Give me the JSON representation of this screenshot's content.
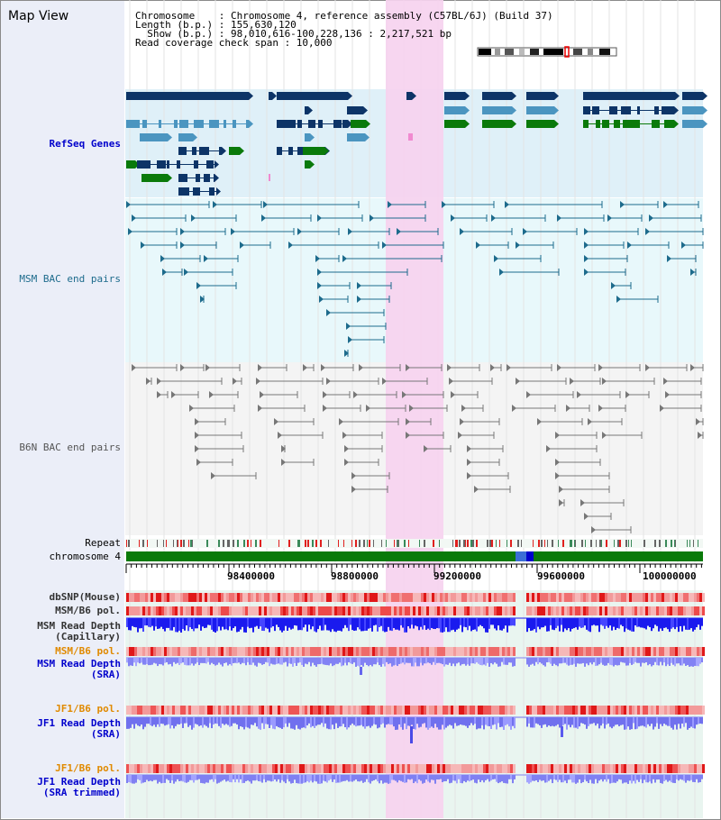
{
  "window": {
    "title": "Map View"
  },
  "info": {
    "line1": "Chromosome    : Chromosome 4, reference assembly (C57BL/6J) (Build 37)",
    "line2": "Length (b.p.) : 155,630,120",
    "line3": "  Show (b.p.) : 98,010,616-100,228,136 : 2,217,521 bp",
    "line4": "Read coverage check span : 10,000"
  },
  "tracks": {
    "refseq": "RefSeq Genes",
    "msm_bac": "MSM BAC end pairs",
    "b6n_bac": "B6N BAC end pairs",
    "repeat": "Repeat",
    "chromosome": "chromosome 4",
    "dbsnp": "dbSNP(Mouse)",
    "msm_pol1": "MSM/B6 pol.",
    "msm_depth_cap_1": "MSM Read Depth",
    "msm_depth_cap_2": "(Capillary)",
    "msm_pol2": "MSM/B6 pol.",
    "msm_depth_sra_1": "MSM Read Depth",
    "msm_depth_sra_2": "(SRA)",
    "jf1_pol1": "JF1/B6 pol.",
    "jf1_depth_sra_1": "JF1 Read Depth",
    "jf1_depth_sra_2": "(SRA)",
    "jf1_pol2": "JF1/B6 pol.",
    "jf1_depth_trim_1": "JF1 Read Depth",
    "jf1_depth_trim_2": "(SRA trimmed)"
  },
  "axis": {
    "ticks": [
      "98400000",
      "98800000",
      "99200000",
      "99600000",
      "100000000"
    ]
  },
  "colors": {
    "refseq_dark": "#0d3467",
    "refseq_mid": "#4b95c0",
    "refseq_green": "#0a7a0a",
    "msm_bac": "#1d6b8c",
    "b6n_bac": "#777777",
    "highlight": "#f6d3ef",
    "chromosome_bar": "#0a7a0a",
    "label_blue": "#0000cc",
    "label_orange": "#e08a00"
  }
}
